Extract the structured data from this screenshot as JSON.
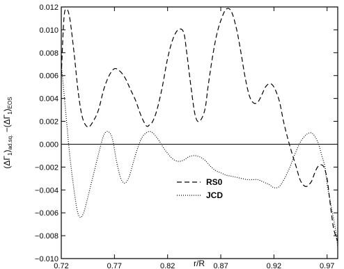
{
  "chart_data": {
    "type": "line",
    "xlabel": "r/R",
    "ylabel": "(ΔΓ1)ad.sq. − (ΔΓ1)EOS",
    "ylabel_parts": {
      "open1": "(ΔΓ",
      "sub1": "1",
      "close1": ")",
      "sub2": "ad.sq.",
      "minus": " −(ΔΓ",
      "sub3": "1",
      "close2": ")",
      "sub4": "EOS"
    },
    "xlim": [
      0.72,
      0.98
    ],
    "ylim": [
      -0.01,
      0.012
    ],
    "xticks": [
      0.72,
      0.77,
      0.82,
      0.87,
      0.92,
      0.97
    ],
    "xtick_labels": [
      "0.72",
      "0.77",
      "0.82",
      "0.87",
      "0.92",
      "0.97"
    ],
    "yticks": [
      -0.01,
      -0.008,
      -0.006,
      -0.004,
      -0.002,
      0.0,
      0.002,
      0.004,
      0.006,
      0.008,
      0.01,
      0.012
    ],
    "ytick_labels": [
      "−0.010",
      "−0.008",
      "−0.006",
      "−0.004",
      "−0.002",
      "0.000",
      "0.002",
      "0.004",
      "0.006",
      "0.008",
      "0.010",
      "0.012"
    ],
    "reference_line_y": 0.0,
    "grid": false,
    "legend_position": "center",
    "series": [
      {
        "name": "RS0",
        "style": "dashed",
        "x": [
          0.72,
          0.7225,
          0.725,
          0.728,
          0.732,
          0.736,
          0.74,
          0.745,
          0.75,
          0.755,
          0.76,
          0.765,
          0.77,
          0.775,
          0.78,
          0.785,
          0.79,
          0.795,
          0.8,
          0.803,
          0.806,
          0.81,
          0.815,
          0.82,
          0.825,
          0.83,
          0.835,
          0.838,
          0.842,
          0.846,
          0.85,
          0.855,
          0.858,
          0.862,
          0.866,
          0.87,
          0.875,
          0.88,
          0.885,
          0.889,
          0.893,
          0.897,
          0.901,
          0.905,
          0.909,
          0.912,
          0.916,
          0.92,
          0.925,
          0.929,
          0.933,
          0.937,
          0.941,
          0.945,
          0.95,
          0.955,
          0.958,
          0.961,
          0.964,
          0.967,
          0.97,
          0.972,
          0.974,
          0.976,
          0.978,
          0.98
        ],
        "y": [
          0.006,
          0.011,
          0.0118,
          0.011,
          0.008,
          0.0045,
          0.0023,
          0.0015,
          0.002,
          0.003,
          0.0048,
          0.006,
          0.0066,
          0.0064,
          0.0058,
          0.0048,
          0.0038,
          0.0025,
          0.0016,
          0.0017,
          0.002,
          0.003,
          0.005,
          0.0075,
          0.0092,
          0.01,
          0.0098,
          0.008,
          0.005,
          0.0025,
          0.002,
          0.003,
          0.005,
          0.0075,
          0.0095,
          0.0108,
          0.0118,
          0.0116,
          0.01,
          0.008,
          0.0058,
          0.0042,
          0.0036,
          0.0037,
          0.0044,
          0.005,
          0.0053,
          0.005,
          0.0038,
          0.002,
          0.0005,
          -0.0008,
          -0.002,
          -0.0032,
          -0.0037,
          -0.0033,
          -0.0026,
          -0.002,
          -0.0018,
          -0.002,
          -0.003,
          -0.0045,
          -0.006,
          -0.0073,
          -0.008,
          -0.0085
        ]
      },
      {
        "name": "JCD",
        "style": "dotted",
        "x": [
          0.72,
          0.724,
          0.728,
          0.732,
          0.735,
          0.738,
          0.741,
          0.744,
          0.748,
          0.752,
          0.756,
          0.76,
          0.764,
          0.768,
          0.772,
          0.776,
          0.78,
          0.784,
          0.788,
          0.792,
          0.796,
          0.8,
          0.804,
          0.808,
          0.812,
          0.816,
          0.82,
          0.825,
          0.83,
          0.835,
          0.84,
          0.845,
          0.85,
          0.855,
          0.86,
          0.865,
          0.87,
          0.875,
          0.88,
          0.885,
          0.89,
          0.895,
          0.9,
          0.905,
          0.91,
          0.915,
          0.92,
          0.925,
          0.93,
          0.935,
          0.94,
          0.945,
          0.95,
          0.955,
          0.959,
          0.962,
          0.965,
          0.968,
          0.97,
          0.972,
          0.974,
          0.976,
          0.978,
          0.98
        ],
        "y": [
          0.007,
          0.003,
          -0.001,
          -0.004,
          -0.0058,
          -0.0064,
          -0.006,
          -0.005,
          -0.0035,
          -0.002,
          -0.0005,
          0.0008,
          0.0011,
          0.0005,
          -0.0015,
          -0.003,
          -0.0034,
          -0.0028,
          -0.0015,
          -0.0003,
          0.0006,
          0.001,
          0.0011,
          0.0008,
          0.0003,
          -0.0003,
          -0.0008,
          -0.0013,
          -0.0015,
          -0.0014,
          -0.0011,
          -0.001,
          -0.0011,
          -0.0014,
          -0.0019,
          -0.0023,
          -0.0025,
          -0.0027,
          -0.0028,
          -0.0029,
          -0.003,
          -0.0031,
          -0.0031,
          -0.0031,
          -0.0033,
          -0.0035,
          -0.0038,
          -0.0037,
          -0.003,
          -0.002,
          -0.0008,
          0.0002,
          0.0008,
          0.001,
          0.0006,
          0.0,
          -0.001,
          -0.002,
          -0.0035,
          -0.0045,
          -0.0055,
          -0.0065,
          -0.0075,
          -0.009
        ]
      }
    ]
  }
}
